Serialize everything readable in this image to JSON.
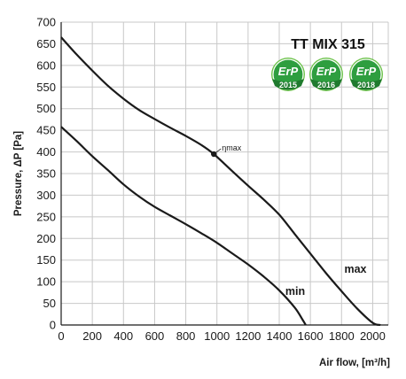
{
  "chart_data": {
    "type": "line",
    "title": "TT MIX 315",
    "xlabel": "Air flow, [m³/h]",
    "ylabel": "Pressure, ΔP [Pa]",
    "xlim": [
      0,
      2100
    ],
    "ylim": [
      0,
      700
    ],
    "xticks": [
      0,
      200,
      400,
      600,
      800,
      1000,
      1200,
      1400,
      1600,
      1800,
      2000
    ],
    "yticks": [
      0,
      50,
      100,
      150,
      200,
      250,
      300,
      350,
      400,
      450,
      500,
      550,
      600,
      650,
      700
    ],
    "grid": true,
    "series": [
      {
        "name": "max",
        "color": "#1a1a1a",
        "x": [
          0,
          100,
          200,
          300,
          400,
          500,
          600,
          700,
          800,
          900,
          980,
          1100,
          1200,
          1300,
          1400,
          1500,
          1600,
          1700,
          1800,
          1900,
          2000,
          2050
        ],
        "y": [
          665,
          625,
          588,
          553,
          523,
          497,
          476,
          456,
          437,
          416,
          395,
          355,
          322,
          290,
          255,
          210,
          165,
          120,
          78,
          38,
          5,
          0
        ]
      },
      {
        "name": "min",
        "color": "#1a1a1a",
        "x": [
          0,
          100,
          200,
          300,
          400,
          500,
          600,
          700,
          800,
          900,
          1000,
          1100,
          1200,
          1300,
          1400,
          1500,
          1550,
          1570
        ],
        "y": [
          458,
          425,
          390,
          358,
          325,
          297,
          273,
          253,
          233,
          212,
          190,
          165,
          140,
          112,
          80,
          40,
          12,
          0
        ]
      }
    ],
    "annotations": [
      {
        "text": "ηmax",
        "x": 980,
        "y": 395,
        "marker": "dot"
      }
    ]
  },
  "badges": [
    {
      "label": "ErP",
      "year": "2015"
    },
    {
      "label": "ErP",
      "year": "2016"
    },
    {
      "label": "ErP",
      "year": "2018"
    }
  ],
  "colors": {
    "grid": "#c8c8c8",
    "axis": "#1a1a1a",
    "badge_green": "#2e9e3f",
    "badge_dark": "#1f7a2e",
    "badge_light": "#6cc24a"
  }
}
